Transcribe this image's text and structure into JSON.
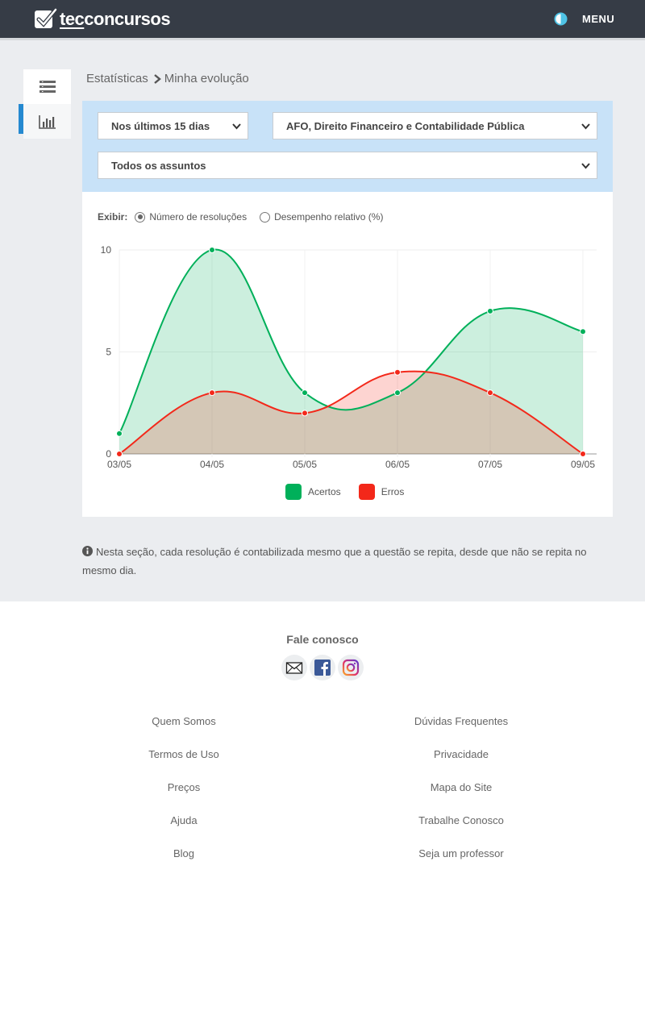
{
  "header": {
    "logo_prefix": "tec",
    "logo_suffix": "concursos",
    "menu_label": "MENU",
    "contrast_icon": "contrast-icon"
  },
  "sidenav": {
    "items": [
      {
        "icon": "list-icon",
        "active": false
      },
      {
        "icon": "bar-chart-icon",
        "active": true
      }
    ]
  },
  "breadcrumb": {
    "parent": "Estatísticas",
    "current": "Minha evolução"
  },
  "filters": {
    "period": "Nos últimos 15 dias",
    "subject": "AFO, Direito Financeiro e Contabilidade Pública",
    "topic": "Todos os assuntos"
  },
  "display": {
    "label": "Exibir:",
    "options": [
      {
        "label": "Número de resoluções",
        "selected": true
      },
      {
        "label": "Desempenho relativo (%)",
        "selected": false
      }
    ]
  },
  "chart_data": {
    "type": "area",
    "categories": [
      "03/05",
      "04/05",
      "05/05",
      "06/05",
      "07/05",
      "09/05"
    ],
    "ylim": [
      0,
      10
    ],
    "yticks": [
      0,
      5,
      10
    ],
    "grid": true,
    "legend": "bottom",
    "series": [
      {
        "name": "Acertos",
        "values": [
          1,
          10,
          3,
          3,
          7,
          6
        ],
        "color": "#00b05a",
        "fill": "rgba(0,176,90,0.2)"
      },
      {
        "name": "Erros",
        "values": [
          0,
          3,
          2,
          4,
          3,
          0
        ],
        "color": "#f3281a",
        "fill": "rgba(243,40,26,0.2)"
      }
    ]
  },
  "note": "Nesta seção, cada resolução é contabilizada mesmo que a questão se repita, desde que não se repita no mesmo dia.",
  "footer": {
    "contact_title": "Fale conosco",
    "social": [
      "email-icon",
      "facebook-icon",
      "instagram-icon"
    ],
    "links_left": [
      "Quem Somos",
      "Termos de Uso",
      "Preços",
      "Ajuda",
      "Blog"
    ],
    "links_right": [
      "Dúvidas Frequentes",
      "Privacidade",
      "Mapa do Site",
      "Trabalhe Conosco",
      "Seja um professor"
    ]
  }
}
